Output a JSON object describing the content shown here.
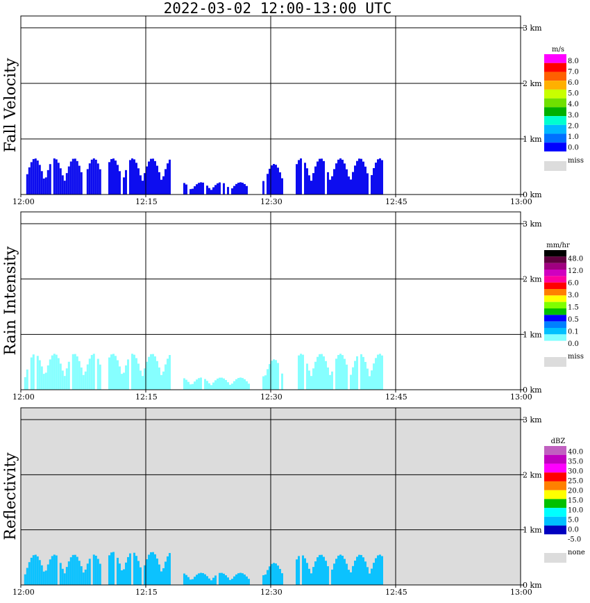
{
  "title": "2022-03-02  12:00-13:00 UTC",
  "chart_data": [
    {
      "type": "heatmap",
      "ylabel": "Fall Velocity",
      "x_ticks": [
        "12:00",
        "12:15",
        "12:30",
        "12:45",
        "13:00"
      ],
      "y_ticks": [
        "0 km",
        "1 km",
        "2 km",
        "3 km"
      ],
      "xlim": [
        "12:00",
        "13:00"
      ],
      "ylim_km": [
        0,
        3
      ],
      "grid": true,
      "background": "#ffffff",
      "colorbar": {
        "unit": "m/s",
        "labels": [
          "8.0",
          "7.0",
          "6.0",
          "5.0",
          "4.0",
          "3.0",
          "2.0",
          "1.0",
          "0.0"
        ],
        "colors": [
          "#ff00ff",
          "#ff0000",
          "#ff6000",
          "#ffb000",
          "#c8ff00",
          "#70e000",
          "#00b000",
          "#00ffd0",
          "#00b8ff",
          "#0070ff",
          "#0000ff"
        ],
        "miss_label": "miss",
        "miss_color": "#dcdcdc"
      },
      "field_color": "#0000ee",
      "echo_features": [
        {
          "t0": 0.4,
          "t1": 9.5,
          "top_km": 0.65,
          "value": "0.0-1.0 m/s"
        },
        {
          "t0": 10.5,
          "t1": 17.8,
          "top_km": 0.65,
          "value": "0.0-1.0 m/s"
        },
        {
          "t0": 19.5,
          "t1": 27.5,
          "top_km": 0.22,
          "value": "0.0-1.0 m/s"
        },
        {
          "t0": 29.0,
          "t1": 31.5,
          "top_km": 0.55,
          "value": "0.0-1.0 m/s"
        },
        {
          "t0": 33.0,
          "t1": 43.5,
          "top_km": 0.65,
          "value": "0.0-1.0 m/s"
        }
      ]
    },
    {
      "type": "heatmap",
      "ylabel": "Rain Intensity",
      "x_ticks": [
        "12:00",
        "12:15",
        "12:30",
        "12:45",
        "13:00"
      ],
      "y_ticks": [
        "0 km",
        "1 km",
        "2 km",
        "3 km"
      ],
      "xlim": [
        "12:00",
        "13:00"
      ],
      "ylim_km": [
        0,
        3
      ],
      "grid": true,
      "background": "#ffffff",
      "colorbar": {
        "unit": "mm/hr",
        "labels": [
          "48.0",
          "12.0",
          "6.0",
          "3.0",
          "1.5",
          "0.5",
          "0.1",
          "0.0"
        ],
        "colors": [
          "#000000",
          "#600040",
          "#a00080",
          "#d000c0",
          "#ff00a0",
          "#ff0000",
          "#ff8000",
          "#ffff00",
          "#80ff00",
          "#00c000",
          "#0000ff",
          "#0080ff",
          "#00c0ff",
          "#80ffff",
          "#ffffff"
        ],
        "miss_label": "miss",
        "miss_color": "#dcdcdc"
      },
      "field_color": "#80ffff",
      "echo_features": [
        {
          "t0": 0.4,
          "t1": 9.5,
          "top_km": 0.65,
          "value": "0.1-0.5 mm/hr"
        },
        {
          "t0": 10.5,
          "t1": 17.8,
          "top_km": 0.65,
          "value": "0.1-0.5 mm/hr"
        },
        {
          "t0": 19.5,
          "t1": 27.5,
          "top_km": 0.22,
          "value": "0.1-0.5 mm/hr"
        },
        {
          "t0": 29.0,
          "t1": 31.5,
          "top_km": 0.55,
          "value": "0.1-0.5 mm/hr"
        },
        {
          "t0": 33.0,
          "t1": 43.5,
          "top_km": 0.65,
          "value": "0.1-0.5 mm/hr"
        }
      ]
    },
    {
      "type": "heatmap",
      "ylabel": "Reflectivity",
      "x_ticks": [
        "12:00",
        "12:15",
        "12:30",
        "12:45",
        "13:00"
      ],
      "y_ticks": [
        "0 km",
        "1 km",
        "2 km",
        "3 km"
      ],
      "xlim": [
        "12:00",
        "13:00"
      ],
      "ylim_km": [
        0,
        3
      ],
      "grid": true,
      "background": "#dcdcdc",
      "colorbar": {
        "unit": "dBZ",
        "labels": [
          "40.0",
          "35.0",
          "30.0",
          "25.0",
          "20.0",
          "15.0",
          "10.0",
          "5.0",
          "0.0",
          "-5.0"
        ],
        "colors": [
          "#c060c0",
          "#c000c0",
          "#ff00ff",
          "#ff0000",
          "#ff8000",
          "#ffff00",
          "#00c000",
          "#00ffff",
          "#00c0ff",
          "#0000c0",
          "#ffffff"
        ],
        "miss_label": "none",
        "miss_color": "#dcdcdc"
      },
      "field_color": "#00c0ff",
      "echo_features": [
        {
          "t0": 0.4,
          "t1": 9.5,
          "top_km": 0.55,
          "value": "5-10 dBZ"
        },
        {
          "t0": 10.5,
          "t1": 17.8,
          "top_km": 0.6,
          "value": "5-10 dBZ"
        },
        {
          "t0": 19.5,
          "t1": 27.5,
          "top_km": 0.22,
          "value": "-5-0 dBZ"
        },
        {
          "t0": 29.0,
          "t1": 31.5,
          "top_km": 0.4,
          "value": "5-10 dBZ"
        },
        {
          "t0": 33.0,
          "t1": 43.5,
          "top_km": 0.55,
          "value": "0-5 dBZ"
        }
      ]
    }
  ]
}
